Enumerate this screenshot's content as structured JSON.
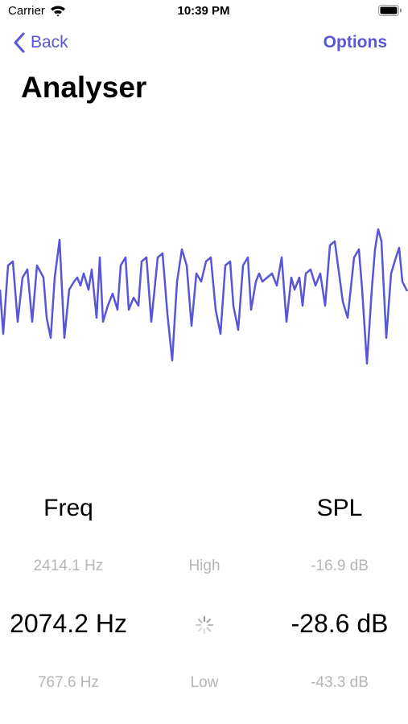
{
  "status_bar": {
    "carrier": "Carrier",
    "time": "10:39 PM"
  },
  "nav": {
    "back": "Back",
    "options": "Options"
  },
  "header": {
    "title": "Analyser"
  },
  "readout": {
    "headers": {
      "freq": "Freq",
      "spl": "SPL"
    },
    "high": {
      "freq": "2414.1 Hz",
      "label": "High",
      "spl": "-16.9 dB"
    },
    "current": {
      "freq": "2074.2 Hz",
      "spl": "-28.6 dB"
    },
    "low": {
      "freq": "767.6 Hz",
      "label": "Low",
      "spl": "-43.3 dB"
    }
  }
}
